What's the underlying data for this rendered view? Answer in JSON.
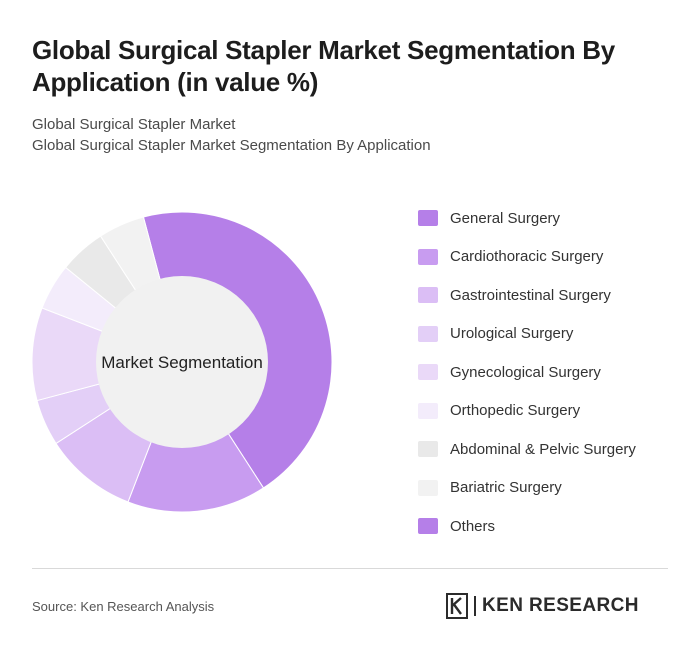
{
  "header": {
    "title": "Global Surgical Stapler Market Segmentation By Application (in value %)",
    "subtitle_line1": "Global Surgical Stapler Market",
    "subtitle_line2": "Global Surgical Stapler Market Segmentation By Application"
  },
  "chart_data": {
    "type": "pie",
    "variant": "donut",
    "center_label": "Market Segmentation",
    "categories": [
      "General Surgery",
      "Cardiothoracic Surgery",
      "Gastrointestinal Surgery",
      "Urological Surgery",
      "Gynecological Surgery",
      "Orthopedic Surgery",
      "Abdominal & Pelvic Surgery",
      "Bariatric Surgery",
      "Others"
    ],
    "values": [
      45,
      15,
      10,
      5,
      10,
      5,
      5,
      5,
      0
    ],
    "colors": [
      "#b57fe8",
      "#c89cf0",
      "#dbbef5",
      "#e3cff7",
      "#ead9f8",
      "#f3ecfb",
      "#e9e9e9",
      "#f2f2f2",
      "#b57fe8"
    ],
    "legend_position": "right"
  },
  "footer": {
    "source": "Source: Ken Research Analysis",
    "brand": "KEN RESEARCH",
    "brand_logo_icon": "ken-research-logo-icon"
  }
}
